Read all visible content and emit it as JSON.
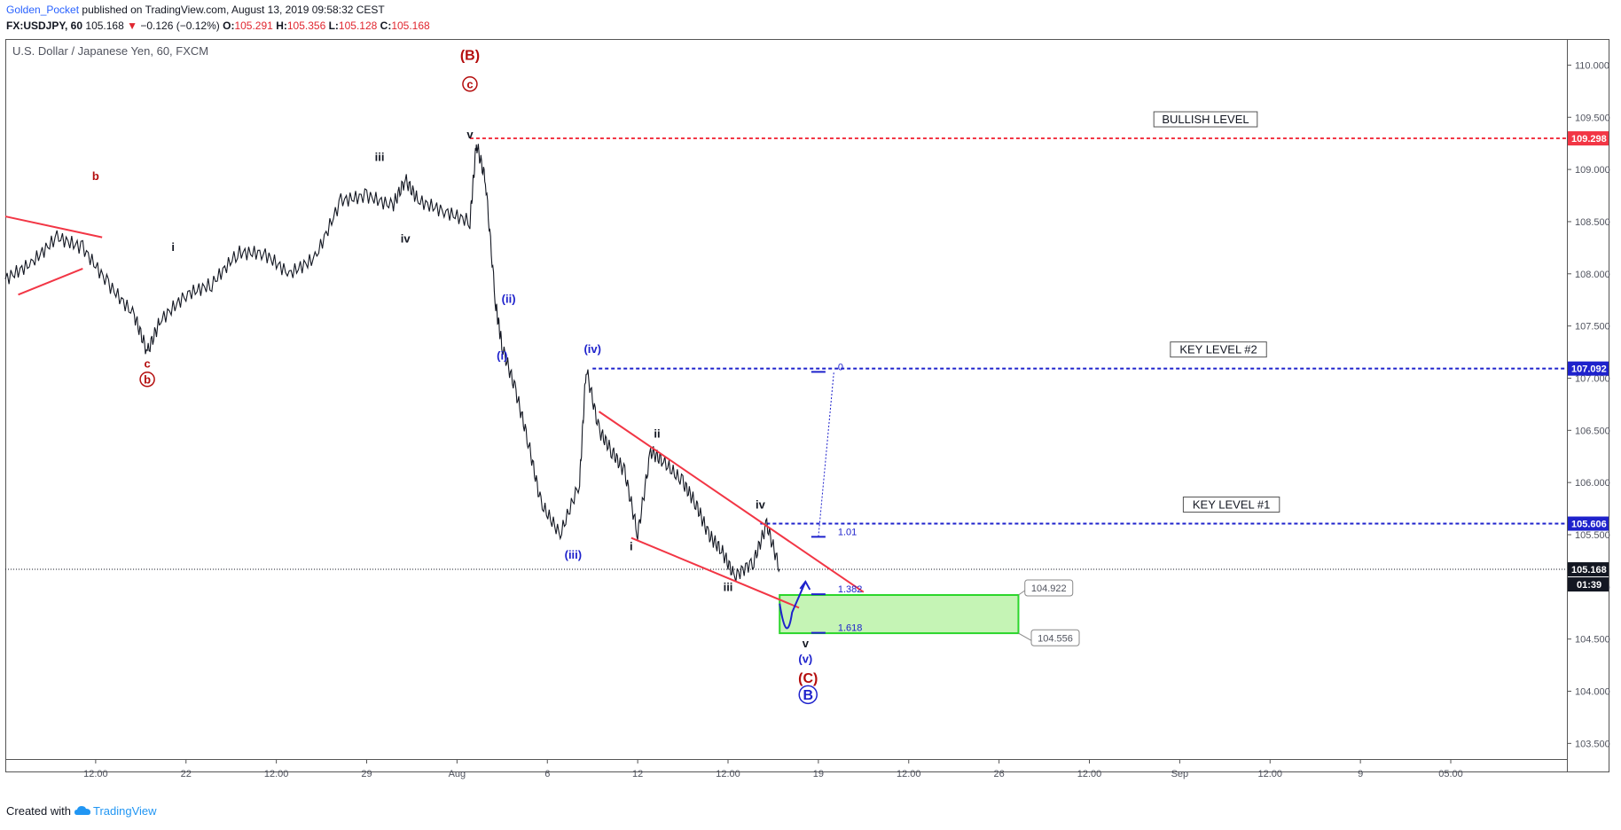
{
  "header": {
    "user": "Golden_Pocket",
    "published": "published on TradingView.com, August 13, 2019 09:58:32 CEST",
    "symbol_line": "FX:USDJPY, 60",
    "last": "105.168",
    "arrow": "▼",
    "change": "−0.126 (−0.12%)",
    "o_label": "O:",
    "o_value": "105.291",
    "h_label": "H:",
    "h_value": "105.356",
    "l_label": "L:",
    "l_value": "105.128",
    "c_label": "C:",
    "c_value": "105.168"
  },
  "footer": {
    "created_with": "Created with",
    "brand": "TradingView"
  },
  "chart_data": {
    "type": "line",
    "title": "U.S. Dollar / Japanese Yen, 60, FXCM",
    "ylim": [
      103.35,
      110.25
    ],
    "y_ticks": [
      "110.000",
      "109.500",
      "109.000",
      "108.500",
      "108.000",
      "107.500",
      "107.000",
      "106.500",
      "106.000",
      "105.500",
      "105.000",
      "104.500",
      "104.000",
      "103.500"
    ],
    "x_ticks": [
      {
        "x": 0.7,
        "label": "12:00"
      },
      {
        "x": 1.4,
        "label": "22"
      },
      {
        "x": 2.1,
        "label": "12:00"
      },
      {
        "x": 2.8,
        "label": "29"
      },
      {
        "x": 3.5,
        "label": "Aug"
      },
      {
        "x": 4.2,
        "label": "6"
      },
      {
        "x": 4.9,
        "label": "12"
      },
      {
        "x": 5.6,
        "label": "12:00"
      },
      {
        "x": 6.3,
        "label": "19"
      },
      {
        "x": 7.0,
        "label": "12:00"
      },
      {
        "x": 7.7,
        "label": "26"
      },
      {
        "x": 8.4,
        "label": "12:00"
      },
      {
        "x": 9.1,
        "label": "Sep"
      },
      {
        "x": 9.8,
        "label": "12:00"
      },
      {
        "x": 10.5,
        "label": "9"
      },
      {
        "x": 11.2,
        "label": "05:00"
      }
    ],
    "price": [
      [
        0.0,
        107.95
      ],
      [
        0.2,
        108.1
      ],
      [
        0.4,
        108.35
      ],
      [
        0.6,
        108.25
      ],
      [
        0.8,
        107.9
      ],
      [
        1.0,
        107.6
      ],
      [
        1.1,
        107.25
      ],
      [
        1.2,
        107.55
      ],
      [
        1.4,
        107.8
      ],
      [
        1.6,
        107.9
      ],
      [
        1.8,
        108.2
      ],
      [
        2.0,
        108.2
      ],
      [
        2.2,
        108.0
      ],
      [
        2.4,
        108.15
      ],
      [
        2.6,
        108.7
      ],
      [
        2.8,
        108.75
      ],
      [
        3.0,
        108.65
      ],
      [
        3.1,
        108.9
      ],
      [
        3.2,
        108.7
      ],
      [
        3.4,
        108.6
      ],
      [
        3.6,
        108.5
      ],
      [
        3.65,
        109.25
      ],
      [
        3.72,
        108.9
      ],
      [
        3.8,
        107.7
      ],
      [
        3.85,
        107.3
      ],
      [
        3.95,
        106.9
      ],
      [
        4.05,
        106.4
      ],
      [
        4.15,
        105.8
      ],
      [
        4.3,
        105.5
      ],
      [
        4.45,
        106.0
      ],
      [
        4.5,
        107.1
      ],
      [
        4.6,
        106.5
      ],
      [
        4.7,
        106.3
      ],
      [
        4.8,
        106.1
      ],
      [
        4.9,
        105.5
      ],
      [
        5.0,
        106.3
      ],
      [
        5.1,
        106.2
      ],
      [
        5.25,
        106.0
      ],
      [
        5.35,
        105.8
      ],
      [
        5.45,
        105.5
      ],
      [
        5.55,
        105.35
      ],
      [
        5.65,
        105.1
      ],
      [
        5.8,
        105.25
      ],
      [
        5.9,
        105.6
      ],
      [
        6.0,
        105.17
      ]
    ],
    "levels": [
      {
        "name": "BULLISH LEVEL",
        "price": 109.298,
        "price_label": "109.298",
        "color": "#f23645"
      },
      {
        "name": "KEY LEVEL #2",
        "price": 107.092,
        "price_label": "107.092",
        "color": "#1e22cc"
      },
      {
        "name": "KEY LEVEL #1",
        "price": 105.606,
        "price_label": "105.606",
        "color": "#1e22cc"
      }
    ],
    "last_price": {
      "price": 105.168,
      "label": "105.168",
      "countdown": "01:39"
    },
    "target_zone": {
      "top": 104.922,
      "bottom": 104.556,
      "top_label": "104.922",
      "bottom_label": "104.556",
      "color": "#7ee65c"
    },
    "fib": [
      {
        "ratio": "0",
        "price": 107.06
      },
      {
        "ratio": "1.01",
        "price": 105.48
      },
      {
        "ratio": "1.382",
        "price": 104.93
      },
      {
        "ratio": "1.618",
        "price": 104.56
      }
    ],
    "waves": [
      {
        "text": "b",
        "x": 0.7,
        "price": 108.9,
        "color": "#b40d0d"
      },
      {
        "text": "c",
        "x": 1.1,
        "price": 107.1,
        "color": "#b40d0d"
      },
      {
        "text": "b",
        "x": 1.1,
        "price": 106.95,
        "color": "#b40d0d",
        "circle": true
      },
      {
        "text": "i",
        "x": 1.3,
        "price": 108.22,
        "color": "#131722"
      },
      {
        "text": "iii",
        "x": 2.9,
        "price": 109.08,
        "color": "#131722"
      },
      {
        "text": "iv",
        "x": 3.1,
        "price": 108.3,
        "color": "#131722"
      },
      {
        "text": "(B)",
        "x": 3.6,
        "price": 110.05,
        "color": "#b40d0d",
        "big": true
      },
      {
        "text": "c",
        "x": 3.6,
        "price": 109.78,
        "color": "#b40d0d",
        "circle": true
      },
      {
        "text": "v",
        "x": 3.6,
        "price": 109.3,
        "color": "#131722"
      },
      {
        "text": "(ii)",
        "x": 3.9,
        "price": 107.72,
        "color": "#1e22cc"
      },
      {
        "text": "(i)",
        "x": 3.85,
        "price": 107.18,
        "color": "#1e22cc"
      },
      {
        "text": "(iv)",
        "x": 4.55,
        "price": 107.24,
        "color": "#1e22cc"
      },
      {
        "text": "(iii)",
        "x": 4.4,
        "price": 105.27,
        "color": "#1e22cc"
      },
      {
        "text": "i",
        "x": 4.85,
        "price": 105.35,
        "color": "#131722"
      },
      {
        "text": "ii",
        "x": 5.05,
        "price": 106.43,
        "color": "#131722"
      },
      {
        "text": "iii",
        "x": 5.6,
        "price": 104.96,
        "color": "#131722"
      },
      {
        "text": "iv",
        "x": 5.85,
        "price": 105.75,
        "color": "#131722"
      },
      {
        "text": "v",
        "x": 6.2,
        "price": 104.42,
        "color": "#131722"
      },
      {
        "text": "(v)",
        "x": 6.2,
        "price": 104.27,
        "color": "#1e22cc"
      },
      {
        "text": "(C)",
        "x": 6.22,
        "price": 104.08,
        "color": "#b40d0d",
        "big": true
      },
      {
        "text": "B",
        "x": 6.22,
        "price": 103.92,
        "color": "#1e22cc",
        "circle": true,
        "big": true
      }
    ],
    "trendlines": [
      {
        "from": [
          0.0,
          108.55
        ],
        "to": [
          0.75,
          108.35
        ],
        "color": "#f23645"
      },
      {
        "from": [
          0.1,
          107.8
        ],
        "to": [
          0.6,
          108.05
        ],
        "color": "#f23645"
      },
      {
        "from": [
          4.6,
          106.68
        ],
        "to": [
          6.65,
          104.95
        ],
        "color": "#f23645"
      },
      {
        "from": [
          4.85,
          105.47
        ],
        "to": [
          6.15,
          104.8
        ],
        "color": "#f23645"
      }
    ],
    "projection_arrow": {
      "from": [
        6.05,
        104.88
      ],
      "to": [
        6.2,
        105.0
      ],
      "color": "#1e22cc"
    }
  }
}
